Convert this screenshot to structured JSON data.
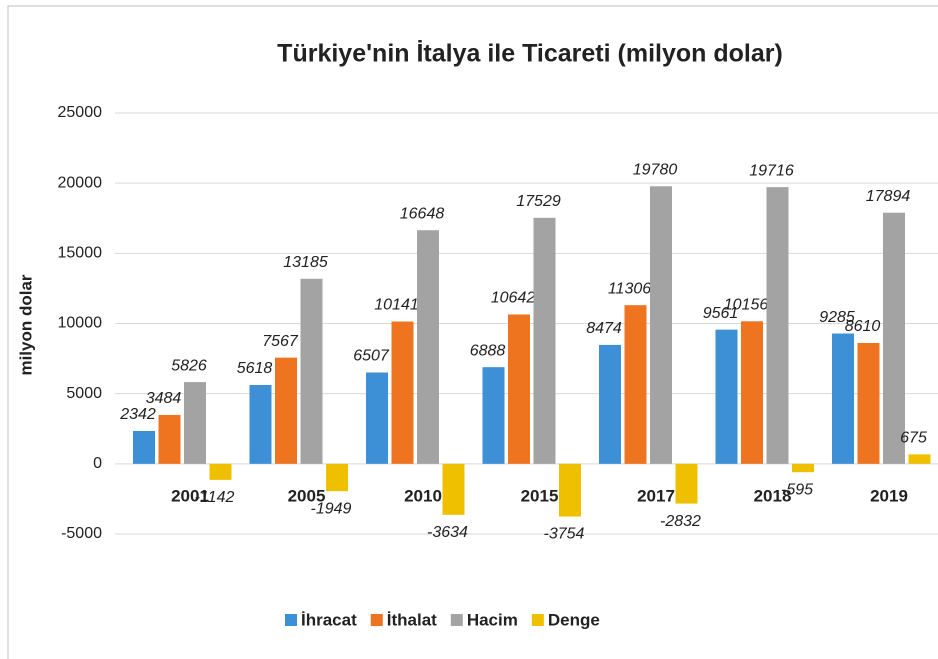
{
  "chart_data": {
    "type": "bar",
    "title": "Türkiye'nin İtalya ile Ticareti (milyon dolar)",
    "y_label": "milyon dolar",
    "categories": [
      "2001",
      "2005",
      "2010",
      "2015",
      "2017",
      "2018",
      "2019"
    ],
    "series": [
      {
        "name": "İhracat",
        "color": "#3d8fd6",
        "values": [
          2342,
          5618,
          6507,
          6888,
          8474,
          9561,
          9285
        ]
      },
      {
        "name": "İthalat",
        "color": "#ee7420",
        "values": [
          3484,
          7567,
          10141,
          10642,
          11306,
          10156,
          8610
        ]
      },
      {
        "name": "Hacim",
        "color": "#a3a3a3",
        "values": [
          5826,
          13185,
          16648,
          17529,
          19780,
          19716,
          17894
        ]
      },
      {
        "name": "Denge",
        "color": "#eec000",
        "values": [
          -1142,
          -1949,
          -3634,
          -3754,
          -2832,
          -595,
          675
        ]
      }
    ],
    "ylim": [
      -5000,
      25000
    ],
    "yticks": [
      -5000,
      0,
      5000,
      10000,
      15000,
      20000,
      25000
    ],
    "grid": true,
    "legend": "bottom"
  }
}
